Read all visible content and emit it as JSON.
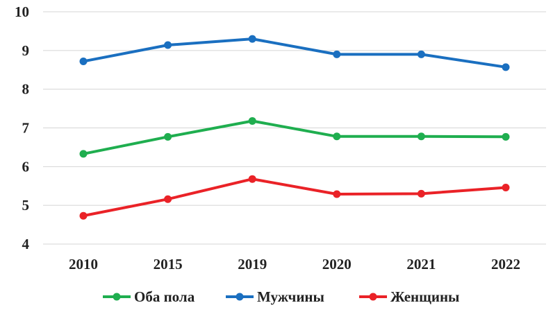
{
  "chart_data": {
    "type": "line",
    "title": "",
    "xlabel": "",
    "ylabel": "",
    "categories": [
      "2010",
      "2015",
      "2019",
      "2020",
      "2021",
      "2022"
    ],
    "ylim": [
      4,
      10
    ],
    "yticks": [
      "4",
      "5",
      "6",
      "7",
      "8",
      "9",
      "10"
    ],
    "grid": "horizontal",
    "legend": "bottom",
    "series": [
      {
        "name": "Оба пола",
        "color": "#1fae4f",
        "values": [
          6.33,
          6.77,
          7.18,
          6.78,
          6.78,
          6.77
        ]
      },
      {
        "name": "Мужчины",
        "color": "#1a6fc0",
        "values": [
          8.72,
          9.14,
          9.3,
          8.9,
          8.9,
          8.57
        ]
      },
      {
        "name": "Женщины",
        "color": "#ea2227",
        "values": [
          4.73,
          5.16,
          5.68,
          5.29,
          5.3,
          5.46
        ]
      }
    ]
  }
}
